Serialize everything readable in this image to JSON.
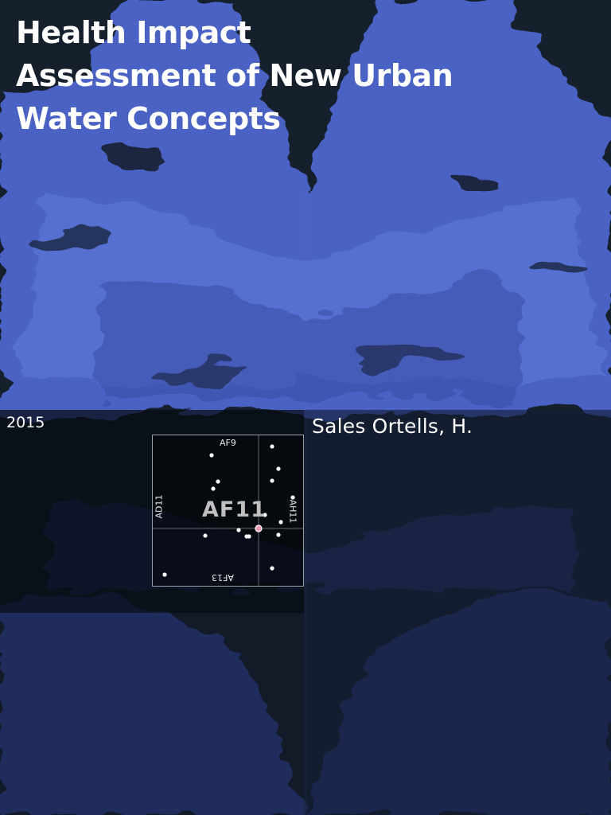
{
  "cover": {
    "title_lines": [
      "Health Impact",
      "Assessment of New Urban",
      "Water Concepts"
    ],
    "year": "2015",
    "author": "Sales Ortells, H."
  },
  "map": {
    "north_code": "AF9",
    "south_code": "AF13",
    "west_code": "AD11",
    "east_code": "AH11",
    "center_code": "AF11"
  },
  "colors": {
    "background": "#16202c",
    "water_blue": "#4a62c4",
    "text": "#ffffff"
  }
}
